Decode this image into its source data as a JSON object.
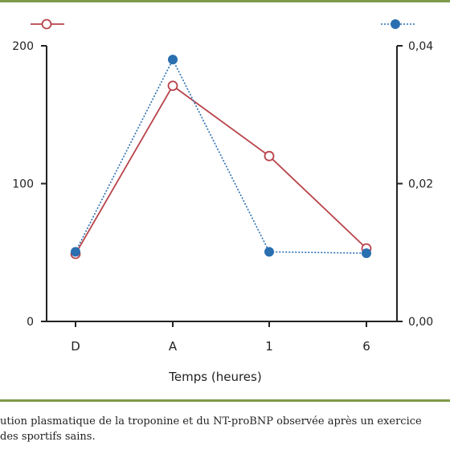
{
  "colors": {
    "troponin": "#b8434a",
    "ntprobnp": "#2a6fb0",
    "frame": "#7f9a4a",
    "axis": "#222222"
  },
  "chart_data": {
    "type": "line",
    "categories": [
      "D",
      "A",
      "1",
      "6"
    ],
    "xlabel": "Temps (heures)",
    "y_left": {
      "ticks": [
        "0",
        "100",
        "200"
      ],
      "ylim": [
        0,
        200
      ]
    },
    "y_right": {
      "ticks": [
        "0,00",
        "0,02",
        "0,04"
      ],
      "ylim": [
        0,
        0.04
      ]
    },
    "series": [
      {
        "key": "troponin",
        "axis": "left",
        "style": "solid",
        "marker": "open-circle",
        "values": [
          49,
          171,
          120,
          53
        ]
      },
      {
        "key": "ntprobnp",
        "axis": "right",
        "style": "dotted",
        "marker": "filled-circle",
        "values": [
          0.0101,
          0.038,
          0.0101,
          0.0099
        ]
      }
    ],
    "grid": false
  },
  "caption": {
    "line1": "ution plasmatique de la troponine et du NT-proBNP observée après un exercice",
    "line2": "des sportifs sains."
  }
}
